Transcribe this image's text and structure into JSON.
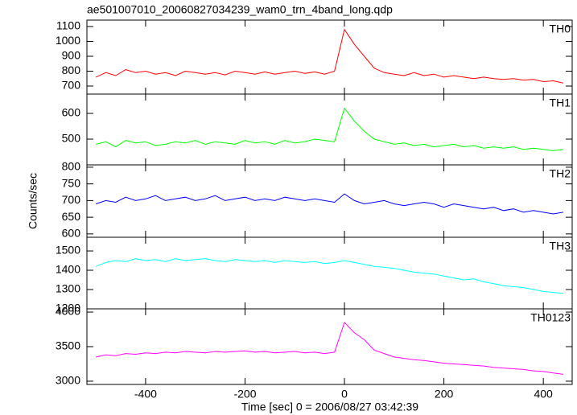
{
  "chart_data": {
    "type": "line",
    "title": "ae501007010_20060827034239_wam0_trn_4band_long.qdp",
    "x_label": "Time [sec] 0 = 2006/08/27 03:42:39",
    "y_label": "Counts/sec",
    "xlim": [
      -518,
      458
    ],
    "xticks": [
      -400,
      -200,
      0,
      200,
      400
    ],
    "x": [
      -500,
      -480,
      -460,
      -440,
      -420,
      -400,
      -380,
      -360,
      -340,
      -320,
      -300,
      -280,
      -260,
      -240,
      -220,
      -200,
      -180,
      -160,
      -140,
      -120,
      -100,
      -80,
      -60,
      -40,
      -20,
      0,
      20,
      40,
      60,
      80,
      100,
      120,
      140,
      160,
      180,
      200,
      220,
      240,
      260,
      280,
      300,
      320,
      340,
      360,
      380,
      400,
      420,
      440
    ],
    "series": [
      {
        "name": "TH0",
        "color": "#ff0000",
        "ylim": [
          646,
          1143
        ],
        "yticks": [
          700,
          800,
          900,
          1000,
          1100
        ],
        "values": [
          760,
          790,
          770,
          810,
          790,
          800,
          780,
          790,
          770,
          800,
          790,
          780,
          790,
          775,
          800,
          790,
          780,
          795,
          780,
          790,
          800,
          785,
          795,
          780,
          800,
          1080,
          980,
          900,
          820,
          790,
          780,
          770,
          790,
          770,
          780,
          760,
          770,
          760,
          750,
          760,
          750,
          745,
          750,
          740,
          745,
          730,
          735,
          720
        ]
      },
      {
        "name": "TH1",
        "color": "#00ff00",
        "ylim": [
          400,
          675
        ],
        "yticks": [
          500,
          600
        ],
        "values": [
          480,
          490,
          470,
          495,
          485,
          490,
          475,
          480,
          490,
          485,
          495,
          480,
          490,
          485,
          480,
          495,
          485,
          490,
          480,
          495,
          485,
          490,
          500,
          495,
          490,
          620,
          570,
          530,
          500,
          490,
          480,
          485,
          475,
          480,
          470,
          475,
          480,
          470,
          475,
          465,
          470,
          465,
          470,
          460,
          465,
          460,
          455,
          460
        ]
      },
      {
        "name": "TH2",
        "color": "#0000ff",
        "ylim": [
          590,
          807
        ],
        "yticks": [
          600,
          650,
          700,
          750,
          800
        ],
        "values": [
          690,
          700,
          695,
          710,
          700,
          705,
          715,
          700,
          705,
          710,
          700,
          705,
          715,
          700,
          705,
          710,
          700,
          705,
          700,
          710,
          705,
          700,
          705,
          700,
          695,
          720,
          700,
          690,
          695,
          700,
          690,
          685,
          690,
          695,
          690,
          680,
          690,
          685,
          680,
          675,
          680,
          670,
          675,
          665,
          670,
          665,
          660,
          665
        ]
      },
      {
        "name": "TH3",
        "color": "#00ffff",
        "ylim": [
          1200,
          1571
        ],
        "yticks": [
          1200,
          1300,
          1400,
          1500
        ],
        "values": [
          1420,
          1440,
          1450,
          1445,
          1460,
          1450,
          1455,
          1445,
          1460,
          1450,
          1455,
          1460,
          1450,
          1445,
          1455,
          1450,
          1445,
          1450,
          1440,
          1450,
          1445,
          1440,
          1445,
          1435,
          1440,
          1450,
          1440,
          1430,
          1420,
          1415,
          1410,
          1400,
          1390,
          1385,
          1380,
          1370,
          1360,
          1350,
          1355,
          1340,
          1330,
          1320,
          1315,
          1310,
          1300,
          1290,
          1285,
          1280
        ]
      },
      {
        "name": "TH0123",
        "color": "#ff00ff",
        "ylim": [
          2953,
          4047
        ],
        "yticks": [
          3000,
          3500,
          4000
        ],
        "values": [
          3350,
          3380,
          3370,
          3400,
          3390,
          3410,
          3400,
          3420,
          3410,
          3430,
          3420,
          3410,
          3430,
          3420,
          3430,
          3440,
          3420,
          3430,
          3410,
          3420,
          3430,
          3410,
          3420,
          3400,
          3420,
          3850,
          3700,
          3600,
          3450,
          3400,
          3350,
          3330,
          3310,
          3300,
          3280,
          3260,
          3250,
          3240,
          3230,
          3220,
          3200,
          3190,
          3180,
          3170,
          3150,
          3140,
          3120,
          3100
        ]
      }
    ]
  }
}
